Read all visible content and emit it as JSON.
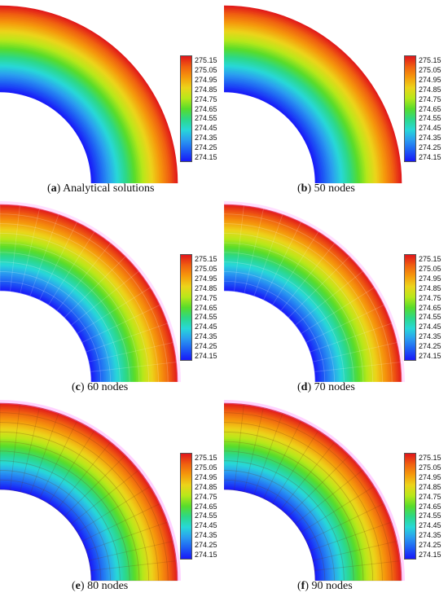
{
  "colorbar_ticks": [
    "275.15",
    "275.05",
    "274.95",
    "274.85",
    "274.75",
    "274.65",
    "274.55",
    "274.45",
    "274.35",
    "274.25",
    "274.15"
  ],
  "colors": {
    "gradient": [
      "#e0151b",
      "#f06010",
      "#f59a0c",
      "#ecd41a",
      "#b8e81a",
      "#58dc2a",
      "#2cd888",
      "#28d8d8",
      "#2a9cf0",
      "#1e5cf4",
      "#1818f8"
    ],
    "mesh_tint": "#ff80ff"
  },
  "panels": [
    {
      "letter": "a",
      "caption": "Analytical solutions"
    },
    {
      "letter": "b",
      "caption": "50 nodes"
    },
    {
      "letter": "c",
      "caption": "60 nodes"
    },
    {
      "letter": "d",
      "caption": "70 nodes"
    },
    {
      "letter": "e",
      "caption": "80 nodes"
    },
    {
      "letter": "f",
      "caption": "90 nodes"
    }
  ]
}
